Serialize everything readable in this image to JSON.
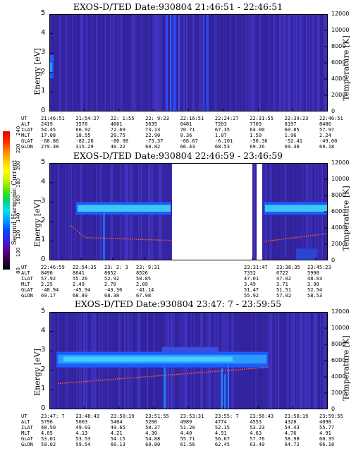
{
  "chart_data": [
    {
      "type": "heatmap",
      "title": "EXOS-D/TED   Date:930804  21:46:51 - 22:46:51",
      "ylabel": "Energy [eV]",
      "y2label": "Temperature [K]",
      "ylim": [
        0,
        5
      ],
      "y2lim": [
        0,
        12000
      ],
      "yticks": [
        "0",
        "1",
        "2",
        "3",
        "4",
        "5"
      ],
      "y2ticks": [
        "0",
        "2000",
        "4000",
        "6000",
        "8000",
        "10000",
        "12000"
      ],
      "data_gap": null,
      "ephemeris": {
        "labels": [
          "UT",
          "ALT",
          "ILAT",
          "MLT",
          "GLAT",
          "GLON"
        ],
        "columns": [
          [
            "21:46:51",
            "2419",
            "54.45",
            "17.08",
            "-68.86",
            "279.38"
          ],
          [
            "21:54:27",
            "3578",
            "66.92",
            "18.55",
            "-82.26",
            "315.29"
          ],
          [
            "22: 1:55",
            "4661",
            "72.69",
            "20.75",
            "-80.98",
            "40.22"
          ],
          [
            "22: 9:23",
            "5635",
            "73.13",
            "22.90",
            "-73.37",
            "60.82"
          ],
          [
            "22:16:51",
            "6481",
            "70.71",
            "0.36",
            "-66.67",
            "66.43"
          ],
          [
            "22:24:27",
            "7203",
            "67.35",
            "1.07",
            "-6.101",
            "68.53"
          ],
          [
            "22:31:55",
            "7769",
            "64.00",
            "1.59",
            "-56.36",
            "69.26"
          ],
          [
            "22:39:23",
            "8197",
            "60.85",
            "1.96",
            "-52.41",
            "69.38"
          ],
          [
            "22:46:51",
            "8486",
            "57.97",
            "2.24",
            "-49.00",
            "69.18"
          ]
        ]
      }
    },
    {
      "type": "heatmap",
      "title": "EXOS-D/TED   Date:930804  22:46:59 - 23:46:59",
      "ylabel": "Energy [eV]",
      "y2label": "Temperature [K]",
      "ylim": [
        0,
        5
      ],
      "y2lim": [
        0,
        12000
      ],
      "yticks": [
        "0",
        "1",
        "2",
        "3",
        "4",
        "5"
      ],
      "y2ticks": [
        "0",
        "2000",
        "4000",
        "6000",
        "8000",
        "10000",
        "12000"
      ],
      "data_gap": [
        "23:10:31",
        "23:31:47"
      ],
      "ephemeris": {
        "labels": [
          "UT",
          "ALT",
          "ILAT",
          "MLT",
          "GLAT",
          "GLON"
        ],
        "columns": [
          [
            "22:46:59",
            "8490",
            "57.92",
            "2.25",
            "-48.94",
            "69.17"
          ],
          [
            "22:54:35",
            "8641",
            "55.26",
            "2.49",
            "-45.94",
            "68.89"
          ],
          [
            "23: 2: 3",
            "8652",
            "52.92",
            "2.70",
            "-43.36",
            "68.38"
          ],
          [
            "23: 9:31",
            "8526",
            "50.85",
            "2.89",
            "-41.14",
            "67.98"
          ],
          [
            "23:31:47",
            "7332",
            "47.01",
            "3.49",
            "51.47",
            "55.92"
          ],
          [
            "23:38:35",
            "6722",
            "47.02",
            "3.71",
            "51.51",
            "57.02"
          ],
          [
            "23:45:23",
            "5998",
            "48.03",
            "3.98",
            "52.54",
            "58.53"
          ]
        ]
      }
    },
    {
      "type": "heatmap",
      "title": "EXOS-D/TED   Date:930804  23:47: 7 - 23:59:55",
      "ylabel": "Energy [eV]",
      "y2label": "Temperature [K]",
      "ylim": [
        0,
        5
      ],
      "y2lim": [
        0,
        12000
      ],
      "yticks": [
        "0",
        "1",
        "2",
        "3",
        "4",
        "5"
      ],
      "y2ticks": [
        "0",
        "2000",
        "4000",
        "6000",
        "8000",
        "10000",
        "12000"
      ],
      "data_gap": null,
      "ephemeris": {
        "labels": [
          "UT",
          "ALT",
          "ILAT",
          "MLT",
          "GLAT",
          "GLON"
        ],
        "columns": [
          [
            "23:47: 7",
            "5796",
            "48.50",
            "4.05",
            "53.01",
            "59.02"
          ],
          [
            "23:48:43",
            "5603",
            "49.03",
            "4.13",
            "53.53",
            "59.54"
          ],
          [
            "23:50:19",
            "5404",
            "49.65",
            "4.21",
            "54.15",
            "60.13"
          ],
          [
            "23:51:55",
            "5200",
            "50.37",
            "4.30",
            "54.88",
            "60.80"
          ],
          [
            "23:53:31",
            "4989",
            "51.20",
            "4.40",
            "55.71",
            "61.56"
          ],
          [
            "23:55: 7",
            "4774",
            "52.15",
            "4.51",
            "56.67",
            "62.45"
          ],
          [
            "23:56:43",
            "4553",
            "53.23",
            "4.63",
            "57.76",
            "63.49"
          ],
          [
            "23:58:19",
            "4328",
            "54.43",
            "4.76",
            "58.98",
            "64.72"
          ],
          [
            "23:59:55",
            "4098",
            "55.77",
            "4.91",
            "60.35",
            "66.18"
          ]
        ]
      }
    }
  ],
  "colorbar": {
    "label": "Second Harmonic Current",
    "ticks": [
      "80",
      "100",
      "120",
      "140",
      "160",
      "180",
      "200",
      "220",
      "240"
    ],
    "colors": [
      "#000000",
      "#3a0046",
      "#5a0096",
      "#3c1ee6",
      "#0050ff",
      "#00a0ff",
      "#00e6e6",
      "#00d278",
      "#50e600",
      "#c8f000",
      "#ffff00",
      "#ffc800",
      "#ff8200",
      "#ff2800",
      "#e60000"
    ]
  }
}
